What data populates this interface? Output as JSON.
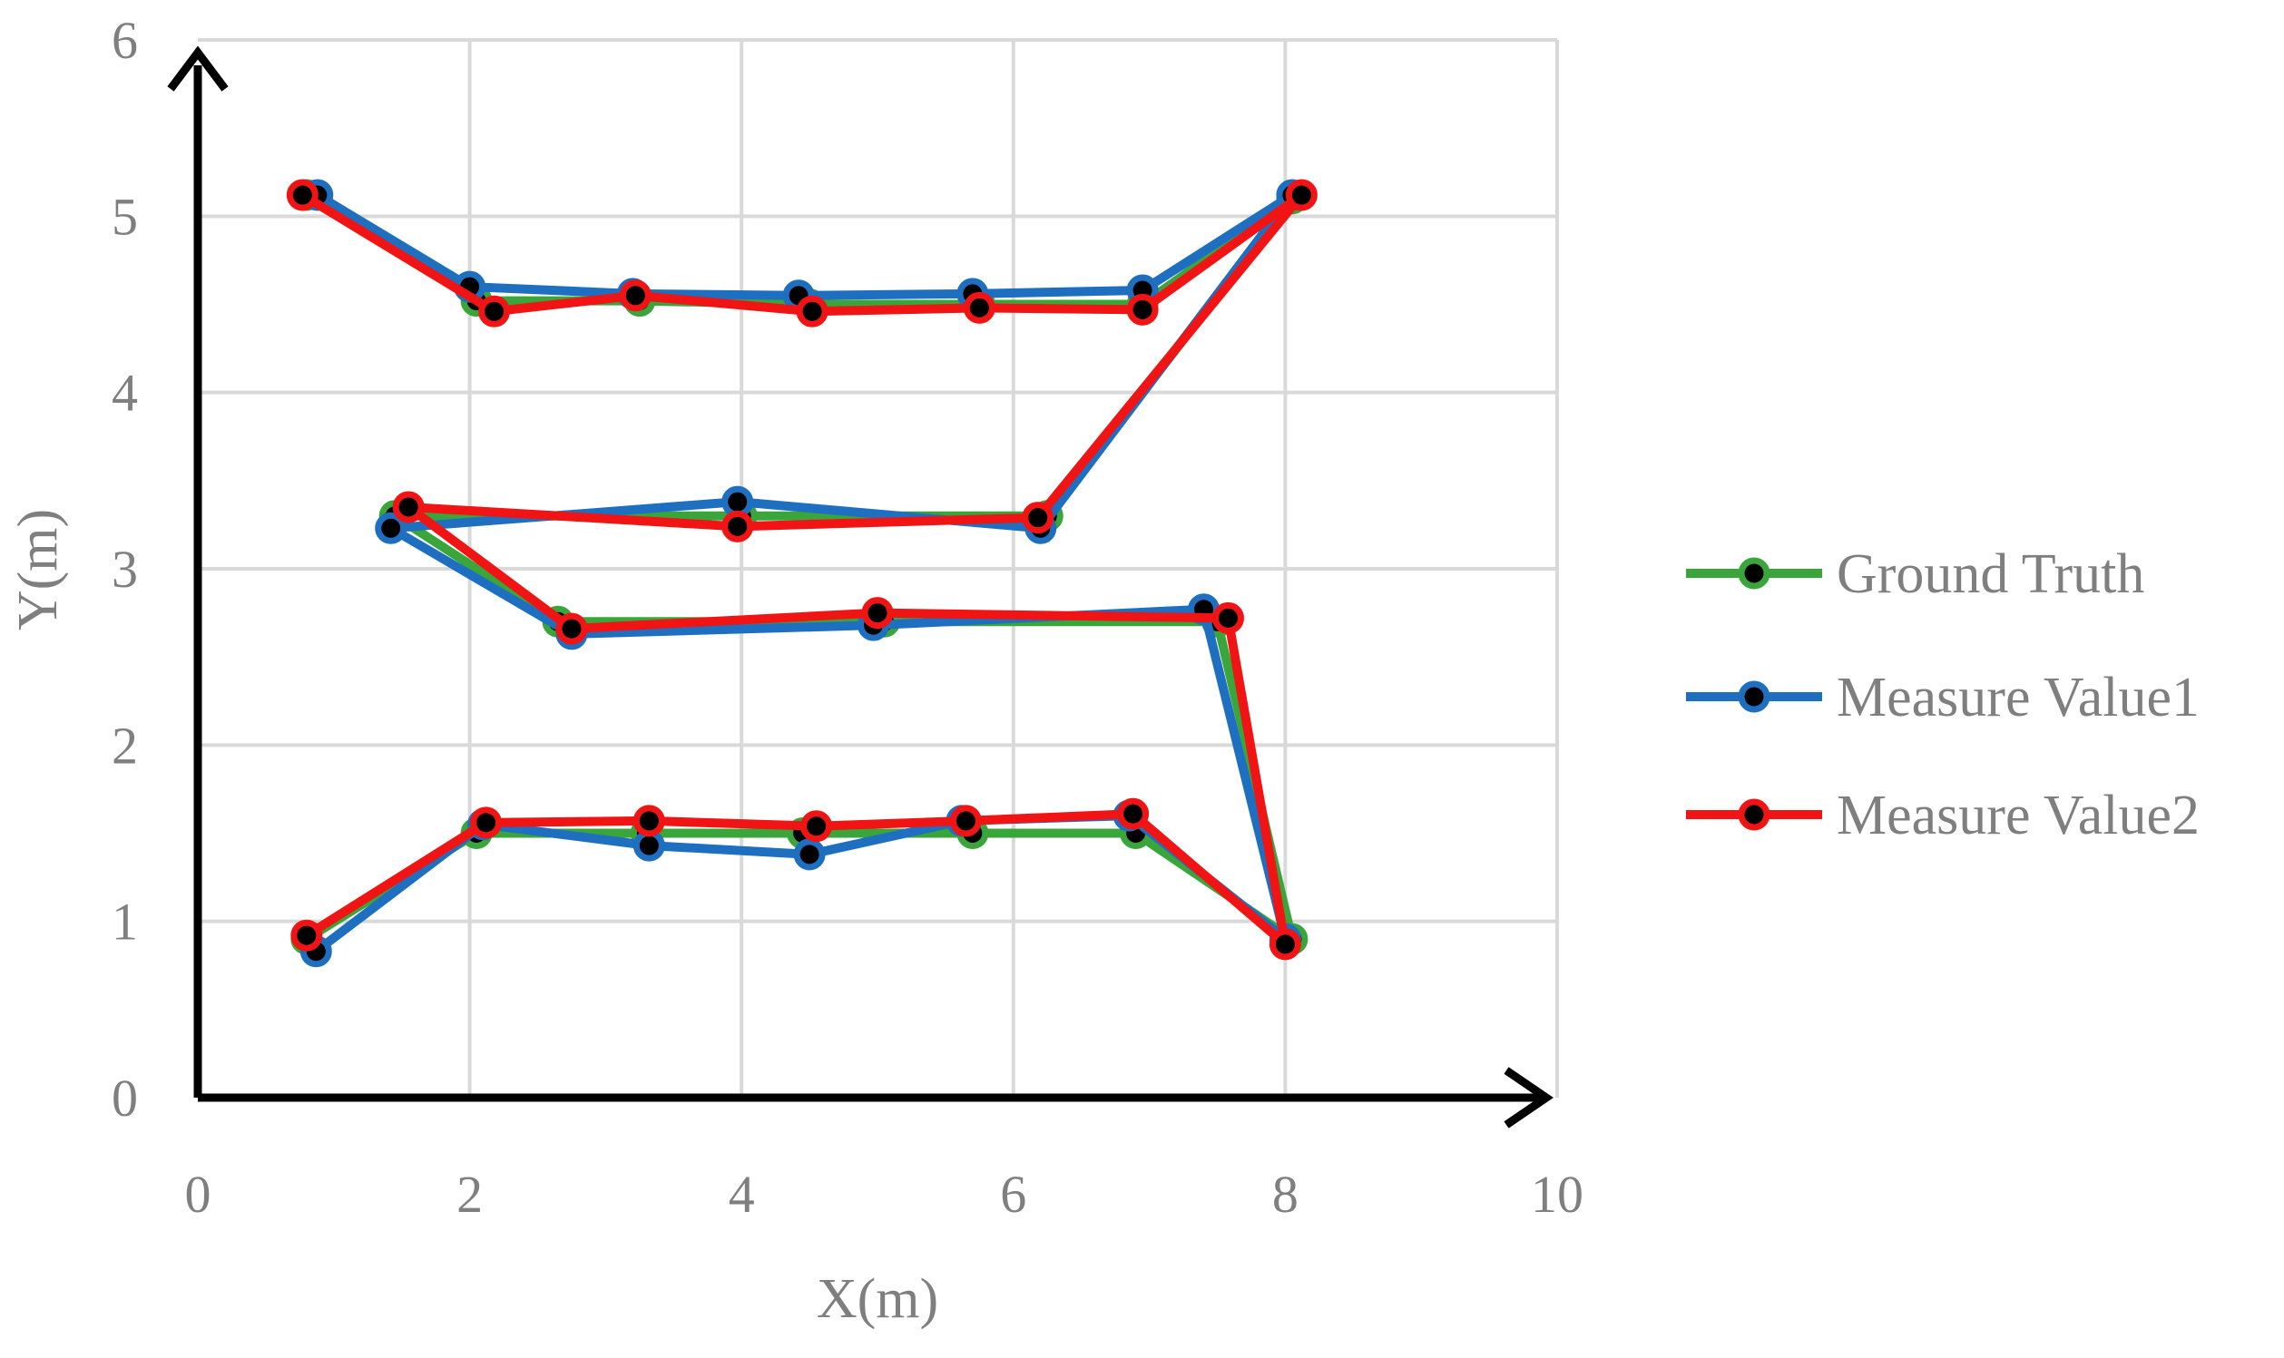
{
  "chart_data": {
    "type": "scatter",
    "title": "",
    "xlabel": "X(m)",
    "ylabel": "Y(m)",
    "xlim": [
      0,
      10
    ],
    "ylim": [
      0,
      6
    ],
    "xticks": [
      0,
      2,
      4,
      6,
      8,
      10
    ],
    "yticks": [
      0,
      1,
      2,
      3,
      4,
      5,
      6
    ],
    "grid": true,
    "legend_position": "right",
    "series": [
      {
        "name": "Ground Truth",
        "color": "#3aa53a",
        "points": [
          [
            0.8,
            5.12
          ],
          [
            2.05,
            4.52
          ],
          [
            3.25,
            4.52
          ],
          [
            4.5,
            4.5
          ],
          [
            5.75,
            4.5
          ],
          [
            6.95,
            4.5
          ],
          [
            8.05,
            5.1
          ],
          [
            6.25,
            3.3
          ],
          [
            4.0,
            3.3
          ],
          [
            1.45,
            3.3
          ],
          [
            2.65,
            2.7
          ],
          [
            5.05,
            2.7
          ],
          [
            7.5,
            2.7
          ],
          [
            8.05,
            0.9
          ],
          [
            6.9,
            1.5
          ],
          [
            5.7,
            1.5
          ],
          [
            4.45,
            1.5
          ],
          [
            3.3,
            1.5
          ],
          [
            2.05,
            1.5
          ],
          [
            0.8,
            0.9
          ]
        ]
      },
      {
        "name": "Measure Value1",
        "color": "#1f6fc1",
        "points": [
          [
            0.88,
            5.12
          ],
          [
            2.0,
            4.6
          ],
          [
            3.2,
            4.56
          ],
          [
            4.42,
            4.55
          ],
          [
            5.7,
            4.56
          ],
          [
            6.95,
            4.58
          ],
          [
            8.05,
            5.12
          ],
          [
            6.2,
            3.23
          ],
          [
            3.97,
            3.38
          ],
          [
            1.42,
            3.23
          ],
          [
            2.75,
            2.63
          ],
          [
            4.97,
            2.68
          ],
          [
            7.4,
            2.77
          ],
          [
            8.0,
            0.9
          ],
          [
            6.85,
            1.6
          ],
          [
            5.62,
            1.57
          ],
          [
            4.5,
            1.38
          ],
          [
            3.32,
            1.43
          ],
          [
            2.1,
            1.55
          ],
          [
            0.87,
            0.83
          ]
        ]
      },
      {
        "name": "Measure Value2",
        "color": "#f01414",
        "points": [
          [
            0.77,
            5.12
          ],
          [
            2.18,
            4.46
          ],
          [
            3.22,
            4.55
          ],
          [
            4.52,
            4.46
          ],
          [
            5.75,
            4.48
          ],
          [
            6.95,
            4.47
          ],
          [
            8.12,
            5.12
          ],
          [
            6.18,
            3.29
          ],
          [
            3.97,
            3.24
          ],
          [
            1.55,
            3.35
          ],
          [
            2.75,
            2.66
          ],
          [
            5.0,
            2.75
          ],
          [
            7.58,
            2.72
          ],
          [
            8.0,
            0.87
          ],
          [
            6.88,
            1.61
          ],
          [
            5.65,
            1.57
          ],
          [
            4.55,
            1.54
          ],
          [
            3.32,
            1.57
          ],
          [
            2.12,
            1.56
          ],
          [
            0.8,
            0.92
          ]
        ]
      }
    ]
  }
}
